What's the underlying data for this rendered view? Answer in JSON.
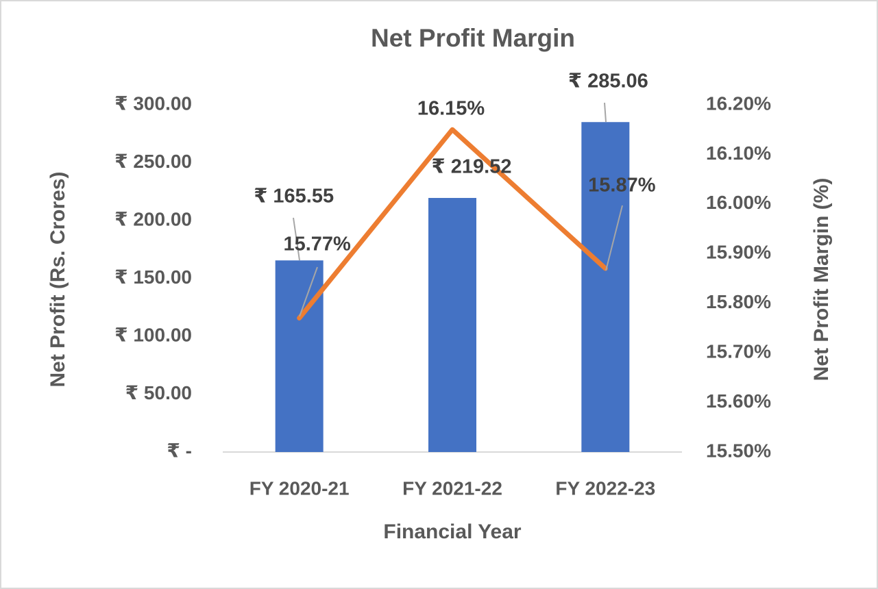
{
  "chart_data": {
    "type": "bar",
    "title": "Net Profit Margin",
    "x_label": "Financial Year",
    "y_label": "Net Profit (Rs. Crores)",
    "y2_label": "Net Profit Margin (%)",
    "categories": [
      "FY 2020-21",
      "FY 2021-22",
      "FY 2022-23"
    ],
    "series": [
      {
        "name": "Net Profit",
        "type": "bar",
        "color": "#4472c4",
        "values": [
          165.55,
          219.52,
          285.06
        ],
        "value_labels": [
          "₹ 165.55",
          "₹ 219.52",
          "₹ 285.06"
        ]
      },
      {
        "name": "Net Profit Margin",
        "type": "line",
        "axis": "y2",
        "color": "#ed7d31",
        "values": [
          15.77,
          16.15,
          15.87
        ],
        "value_labels": [
          "15.77%",
          "16.15%",
          "15.87%"
        ]
      }
    ],
    "ylim": [
      0,
      300
    ],
    "yticks": [
      {
        "value": 0,
        "label": "₹ -"
      },
      {
        "value": 50,
        "label": "₹ 50.00"
      },
      {
        "value": 100,
        "label": "₹ 100.00"
      },
      {
        "value": 150,
        "label": "₹ 150.00"
      },
      {
        "value": 200,
        "label": "₹ 200.00"
      },
      {
        "value": 250,
        "label": "₹ 250.00"
      },
      {
        "value": 300,
        "label": "₹ 300.00"
      }
    ],
    "y2lim": [
      15.5,
      16.2
    ],
    "y2ticks": [
      {
        "value": 15.5,
        "label": "15.50%"
      },
      {
        "value": 15.6,
        "label": "15.60%"
      },
      {
        "value": 15.7,
        "label": "15.70%"
      },
      {
        "value": 15.8,
        "label": "15.80%"
      },
      {
        "value": 15.9,
        "label": "15.90%"
      },
      {
        "value": 16.0,
        "label": "16.00%"
      },
      {
        "value": 16.1,
        "label": "16.10%"
      },
      {
        "value": 16.2,
        "label": "16.20%"
      }
    ],
    "grid": false
  }
}
